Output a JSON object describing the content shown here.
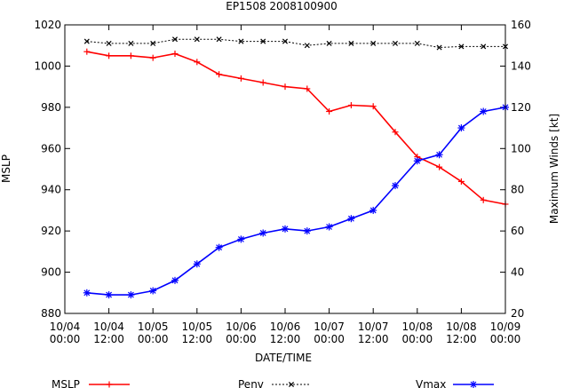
{
  "chart_data": {
    "type": "line",
    "title": "EP1508 2008100900",
    "xlabel": "DATE/TIME",
    "ylabel": "MSLP",
    "y2label": "Maximum Winds [kt]",
    "ylim": [
      880,
      1020
    ],
    "y2lim": [
      20,
      160
    ],
    "xlim": [
      0,
      120
    ],
    "yticks": [
      880,
      900,
      920,
      940,
      960,
      980,
      1000,
      1020
    ],
    "y2ticks": [
      20,
      40,
      60,
      80,
      100,
      120,
      140,
      160
    ],
    "xticks": [
      {
        "h": 0,
        "line1": "10/04",
        "line2": "00:00"
      },
      {
        "h": 12,
        "line1": "10/04",
        "line2": "12:00"
      },
      {
        "h": 24,
        "line1": "10/05",
        "line2": "00:00"
      },
      {
        "h": 36,
        "line1": "10/05",
        "line2": "12:00"
      },
      {
        "h": 48,
        "line1": "10/06",
        "line2": "00:00"
      },
      {
        "h": 60,
        "line1": "10/06",
        "line2": "12:00"
      },
      {
        "h": 72,
        "line1": "10/07",
        "line2": "00:00"
      },
      {
        "h": 84,
        "line1": "10/07",
        "line2": "12:00"
      },
      {
        "h": 96,
        "line1": "10/08",
        "line2": "00:00"
      },
      {
        "h": 108,
        "line1": "10/08",
        "line2": "12:00"
      },
      {
        "h": 120,
        "line1": "10/09",
        "line2": "00:00"
      }
    ],
    "x": [
      6,
      12,
      18,
      24,
      30,
      36,
      42,
      48,
      54,
      60,
      66,
      72,
      78,
      84,
      90,
      96,
      102,
      108,
      114,
      120
    ],
    "series": [
      {
        "name": "MSLP",
        "axis": "left",
        "color": "#ff0000",
        "marker": "plus",
        "values": [
          1007,
          1005,
          1005,
          1004,
          1006,
          1002,
          996,
          994,
          992,
          990,
          989,
          978,
          981,
          980.5,
          968,
          956,
          951,
          944,
          935,
          933
        ]
      },
      {
        "name": "Penv",
        "axis": "left",
        "color": "#000000",
        "marker": "x",
        "dashed": true,
        "values": [
          1012,
          1011,
          1011,
          1011,
          1013,
          1013,
          1013,
          1012,
          1012,
          1012,
          1010,
          1011,
          1011,
          1011,
          1011,
          1011,
          1009,
          1009.5,
          1009.5,
          1009.5
        ]
      },
      {
        "name": "Vmax",
        "axis": "right",
        "color": "#0000ff",
        "marker": "star",
        "values": [
          30,
          29,
          29,
          31,
          36,
          44,
          52,
          56,
          59,
          61,
          60,
          62,
          66,
          70,
          82,
          94,
          97,
          110,
          118,
          120
        ]
      }
    ],
    "legend": [
      {
        "label": "MSLP",
        "color": "#ff0000"
      },
      {
        "label": "Penv",
        "color": "#000000"
      },
      {
        "label": "Vmax",
        "color": "#0000ff"
      }
    ],
    "legend_position": "bottom"
  }
}
